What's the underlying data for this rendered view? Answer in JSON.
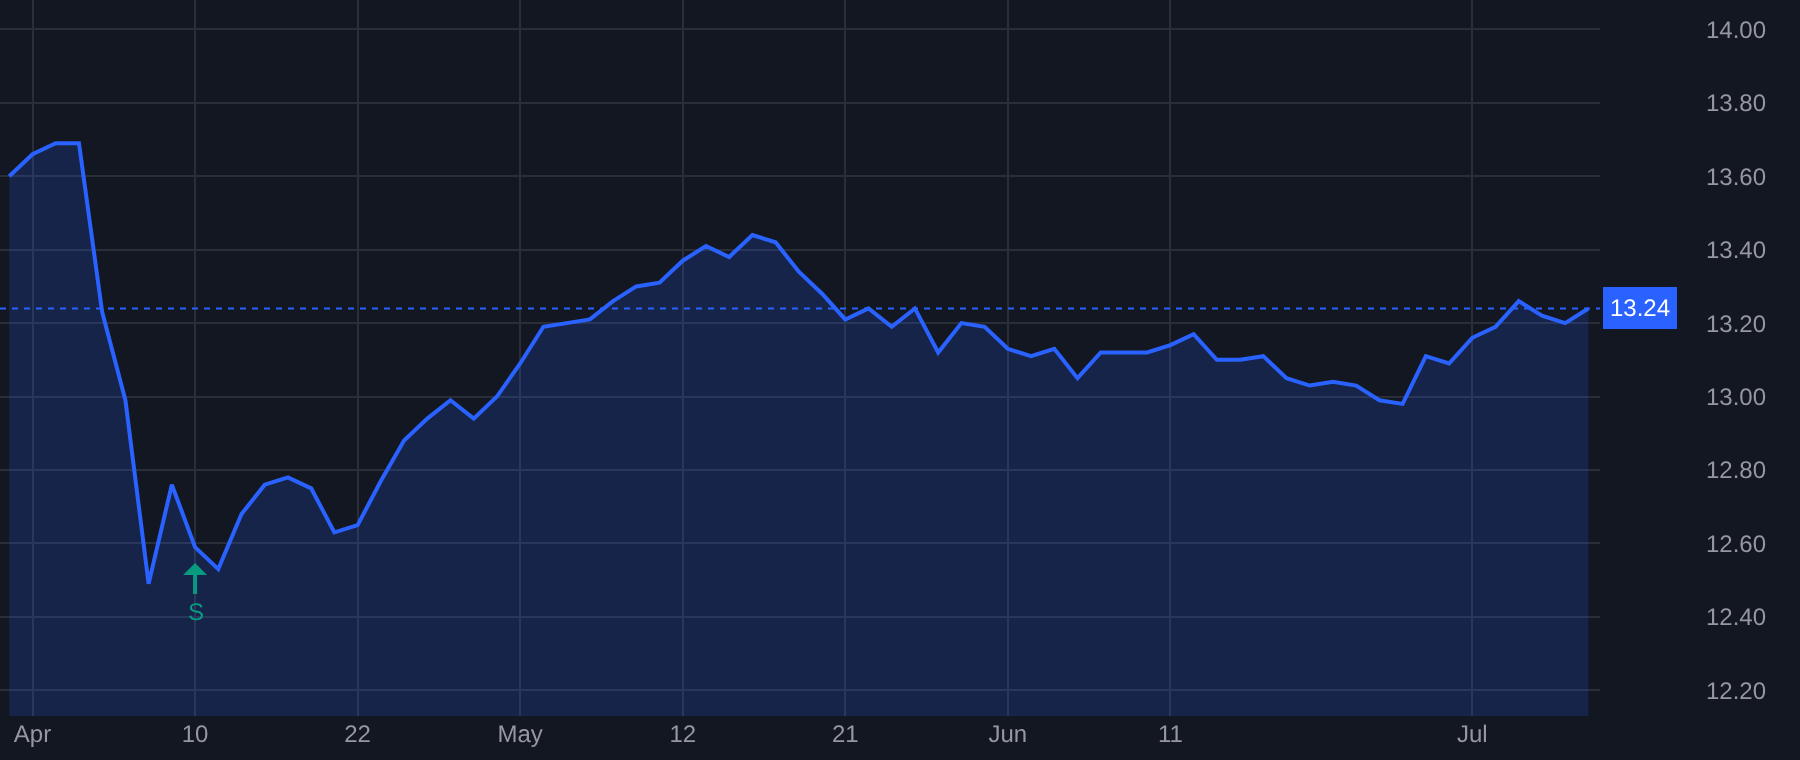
{
  "chart_data": {
    "type": "area",
    "categories": [
      null,
      "Apr",
      null,
      null,
      null,
      null,
      null,
      null,
      "10",
      null,
      null,
      null,
      null,
      null,
      null,
      "22",
      null,
      null,
      null,
      null,
      null,
      null,
      "May",
      null,
      null,
      null,
      null,
      null,
      null,
      "12",
      null,
      null,
      null,
      null,
      null,
      null,
      "21",
      null,
      null,
      null,
      null,
      null,
      null,
      "Jun",
      null,
      null,
      null,
      null,
      null,
      null,
      "11",
      null,
      null,
      null,
      null,
      null,
      null,
      null,
      null,
      null,
      null,
      null,
      null,
      "Jul",
      null,
      null,
      null,
      null,
      null
    ],
    "series": [
      {
        "color": "#2962ff",
        "values": [
          13.6,
          13.66,
          13.69,
          13.69,
          13.23,
          12.99,
          12.49,
          12.76,
          12.59,
          12.53,
          12.68,
          12.76,
          12.78,
          12.75,
          12.63,
          12.65,
          12.77,
          12.88,
          12.94,
          12.99,
          12.94,
          13.0,
          13.09,
          13.19,
          13.2,
          13.21,
          13.26,
          13.3,
          13.31,
          13.37,
          13.41,
          13.38,
          13.44,
          13.42,
          13.34,
          13.28,
          13.21,
          13.24,
          13.19,
          13.24,
          13.12,
          13.2,
          13.19,
          13.13,
          13.11,
          13.13,
          13.05,
          13.12,
          13.12,
          13.12,
          13.14,
          13.17,
          13.1,
          13.1,
          13.11,
          13.05,
          13.03,
          13.04,
          13.03,
          12.99,
          12.98,
          13.11,
          13.09,
          13.16,
          13.19,
          13.26,
          13.22,
          13.2,
          13.24
        ]
      }
    ],
    "ylim": [
      12.13,
      14.08
    ],
    "yticks": [
      {
        "value": 12.2,
        "label": "12.20"
      },
      {
        "value": 12.4,
        "label": "12.40"
      },
      {
        "value": 12.6,
        "label": "12.60"
      },
      {
        "value": 12.8,
        "label": "12.80"
      },
      {
        "value": 13.0,
        "label": "13.00"
      },
      {
        "value": 13.2,
        "label": "13.20"
      },
      {
        "value": 13.4,
        "label": "13.40"
      },
      {
        "value": 13.6,
        "label": "13.60"
      },
      {
        "value": 13.8,
        "label": "13.80"
      },
      {
        "value": 14.0,
        "label": "14.00"
      }
    ],
    "ref_lines": [
      {
        "axis": "y",
        "value": 13.24,
        "label": "13.24",
        "color": "#2962ff",
        "line_style": "dotted"
      }
    ],
    "annotations": [
      {
        "text": "S",
        "x": "10",
        "y": 12.59
      }
    ],
    "grid": true,
    "marker": "none",
    "line_style": "solid"
  }
}
